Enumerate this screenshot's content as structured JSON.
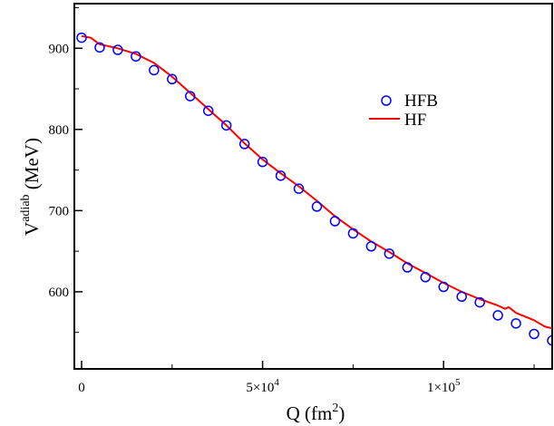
{
  "chart_data": {
    "type": "line",
    "xlabel": {
      "main": "Q (fm",
      "sup": "2",
      "tail": ")"
    },
    "ylabel": {
      "main": "V",
      "sup": "adiab",
      "tail": " (MeV)"
    },
    "xlim": [
      -2000,
      130000
    ],
    "ylim": [
      505,
      955
    ],
    "x_ticks": [
      {
        "value": 0,
        "label": "0",
        "sup": ""
      },
      {
        "value": 50000,
        "label": "5×10",
        "sup": "4"
      },
      {
        "value": 100000,
        "label": "1×10",
        "sup": "5"
      }
    ],
    "y_ticks": [
      {
        "value": 600,
        "label": "600"
      },
      {
        "value": 700,
        "label": "700"
      },
      {
        "value": 800,
        "label": "800"
      },
      {
        "value": 900,
        "label": "900"
      }
    ],
    "legend_position": "upper-right",
    "series": [
      {
        "name": "HFB",
        "style": "markers",
        "marker": "open-circle",
        "color": "#0000ff",
        "x": [
          0,
          5000,
          10000,
          15000,
          20000,
          25000,
          30000,
          35000,
          40000,
          45000,
          50000,
          55000,
          60000,
          65000,
          70000,
          75000,
          80000,
          85000,
          90000,
          95000,
          100000,
          105000,
          110000,
          115000,
          120000,
          125000,
          130000
        ],
        "y": [
          913,
          901,
          898,
          890,
          873,
          862,
          841,
          823,
          805,
          782,
          760,
          743,
          727,
          705,
          687,
          672,
          656,
          647,
          630,
          618,
          606,
          594,
          587,
          571,
          561,
          548,
          540
        ]
      },
      {
        "name": "HF",
        "style": "line",
        "color": "#ff0000",
        "x": [
          0,
          2500,
          5000,
          10000,
          15000,
          20000,
          25000,
          30000,
          35000,
          40000,
          45000,
          50000,
          55000,
          60000,
          65000,
          70000,
          75000,
          80000,
          85000,
          90000,
          95000,
          100000,
          105000,
          110000,
          115000,
          117000,
          118000,
          120000,
          125000,
          128000,
          130000
        ],
        "y": [
          915,
          913,
          905,
          900,
          893,
          882,
          865,
          845,
          825,
          805,
          783,
          763,
          746,
          730,
          712,
          693,
          677,
          662,
          649,
          635,
          623,
          611,
          600,
          591,
          583,
          579,
          581,
          574,
          565,
          557,
          555
        ]
      }
    ]
  }
}
